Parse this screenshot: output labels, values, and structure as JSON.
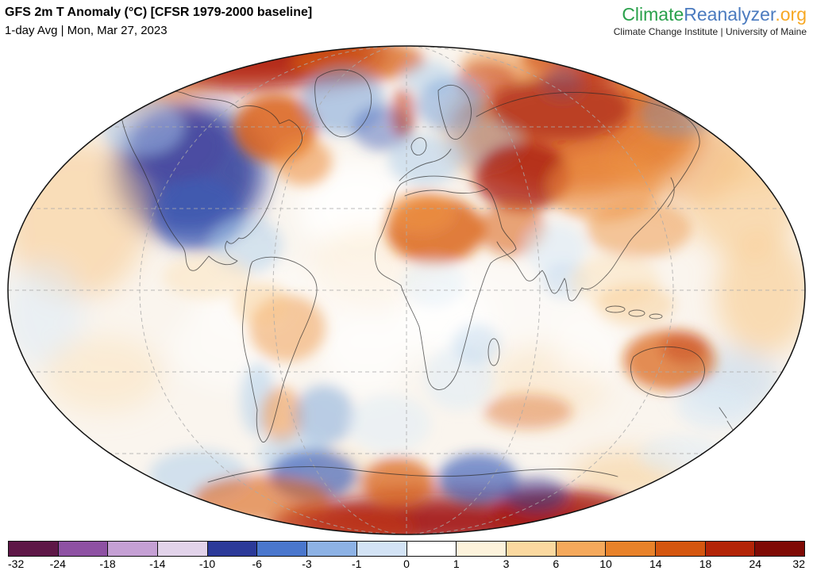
{
  "header": {
    "title": "GFS 2m T Anomaly (°C) [CFSR 1979-2000 baseline]",
    "subtitle": "1-day Avg | Mon, Mar 27, 2023"
  },
  "branding": {
    "logo": {
      "part_climate": "Climate",
      "part_reanalyzer": "Reanalyzer",
      "part_org": ".org",
      "color_climate": "#2aa14c",
      "color_reanalyzer": "#4b7bbf",
      "color_org": "#f7a823"
    },
    "tagline": "Climate Change Institute | University of Maine"
  },
  "chart_data": {
    "type": "heatmap",
    "title": "GFS 2m T Anomaly (°C) [CFSR 1979-2000 baseline]",
    "subtitle": "1-day Avg | Mon, Mar 27, 2023",
    "variable": "2 m air temperature anomaly",
    "units": "°C",
    "model": "GFS",
    "baseline": "CFSR 1979-2000",
    "averaging_period": "1-day Avg",
    "valid_date": "Mon, Mar 27, 2023",
    "projection": "global elliptical (Robinson-style) world map with dashed graticule and coastlines",
    "colorbar": {
      "orientation": "horizontal",
      "ticks": [
        -32,
        -24,
        -18,
        -14,
        -10,
        -6,
        -3,
        -1,
        0,
        1,
        3,
        6,
        10,
        14,
        18,
        24,
        32
      ],
      "segment_colors": [
        "#5e1747",
        "#8e51a3",
        "#c5a0d4",
        "#e2d3ea",
        "#2c3a99",
        "#4a77cd",
        "#8db2e5",
        "#d3e3f5",
        "#ffffff",
        "#fdf3dc",
        "#fbd9a0",
        "#f5a95c",
        "#e8822a",
        "#d4560f",
        "#b32407",
        "#7f0a05"
      ]
    },
    "notable_anomalies": [
      {
        "region": "Arctic rim (top of map)",
        "anomaly_c": 20
      },
      {
        "region": "Western North America",
        "anomaly_c": -12
      },
      {
        "region": "Eastern Canada / Hudson Bay",
        "anomaly_c": 12
      },
      {
        "region": "Greenland / Iceland",
        "anomaly_c": -6
      },
      {
        "region": "Northern Europe / Scandinavia",
        "anomaly_c": -4
      },
      {
        "region": "Siberia / Central Asia",
        "anomaly_c": 16
      },
      {
        "region": "North Africa / Sahara",
        "anomaly_c": 10
      },
      {
        "region": "Middle East",
        "anomaly_c": 8
      },
      {
        "region": "Australia",
        "anomaly_c": 8
      },
      {
        "region": "Southern Ocean cold spots",
        "anomaly_c": -8
      },
      {
        "region": "Antarctic coast (bottom of map)",
        "anomaly_c": 18
      }
    ]
  }
}
